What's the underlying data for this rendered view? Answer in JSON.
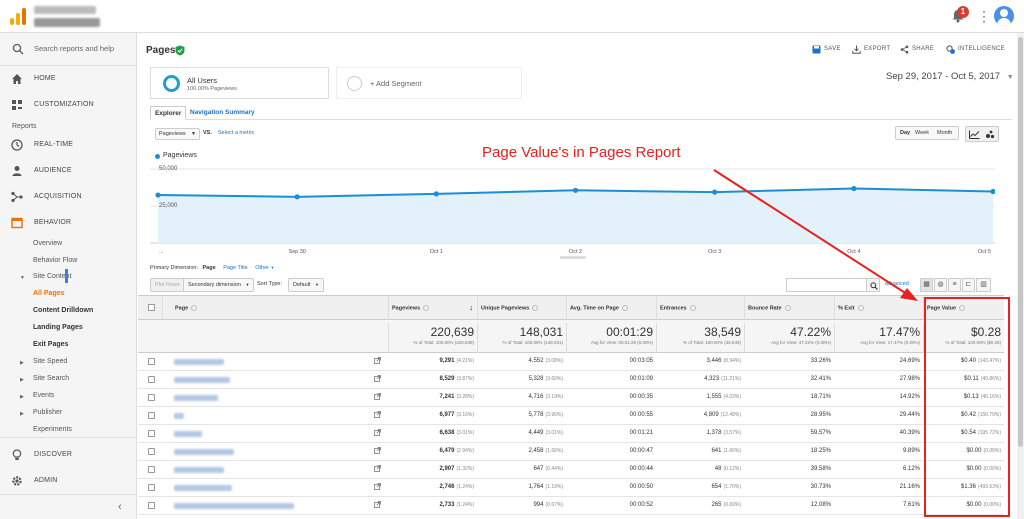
{
  "header": {
    "notification_count": "1"
  },
  "sidebar": {
    "search_placeholder": "Search reports and help",
    "home": "HOME",
    "customization": "CUSTOMIZATION",
    "reports_label": "Reports",
    "realtime": "REAL-TIME",
    "audience": "AUDIENCE",
    "acquisition": "ACQUISITION",
    "behavior": "BEHAVIOR",
    "behavior_items": {
      "overview": "Overview",
      "behavior_flow": "Behavior Flow",
      "site_content": "Site Content",
      "all_pages": "All Pages",
      "content_drilldown": "Content Drilldown",
      "landing_pages": "Landing Pages",
      "exit_pages": "Exit Pages",
      "site_speed": "Site Speed",
      "site_search": "Site Search",
      "events": "Events",
      "publisher": "Publisher",
      "experiments": "Experiments"
    },
    "discover": "DISCOVER",
    "admin": "ADMIN"
  },
  "toolbar": {
    "title": "Pages",
    "save": "SAVE",
    "export": "EXPORT",
    "share": "SHARE",
    "intelligence": "INTELLIGENCE"
  },
  "segments": {
    "name": "All Users",
    "sub": "100.00% Pageviews",
    "add": "+ Add Segment"
  },
  "date_range": "Sep 29, 2017 - Oct 5, 2017",
  "tabs": {
    "explorer": "Explorer",
    "nav_summary": "Navigation Summary"
  },
  "metric_controls": {
    "metric": "Pageviews",
    "vs": "VS.",
    "select_metric": "Select a metric",
    "day": "Day",
    "week": "Week",
    "month": "Month"
  },
  "annotation": "Page Value's in Pages Report",
  "chart_data": {
    "type": "area",
    "series": [
      {
        "name": "Pageviews",
        "values": [
          32400,
          31200,
          33200,
          35600,
          34400,
          36800,
          34800
        ]
      }
    ],
    "x": [
      "Sep 29",
      "Sep 30",
      "Oct 1",
      "Oct 2",
      "Oct 3",
      "Oct 4",
      "Oct 5"
    ],
    "x_tick_labels": [
      "...",
      "Sep 30",
      "Oct 1",
      "Oct 2",
      "Oct 3",
      "Oct 4",
      "Oct 5"
    ],
    "y_tick_labels": [
      "50,000",
      "25,000"
    ],
    "ylim": [
      0,
      50000
    ],
    "grid": true,
    "color": "#1a8fd6",
    "fill": "#e3f1fb"
  },
  "dimension": {
    "label": "Primary Dimension:",
    "page": "Page",
    "page_title": "Page Title",
    "other": "Other"
  },
  "table_toolbar": {
    "plot_rows": "Plot Rows",
    "secondary_dimension": "Secondary dimension",
    "sort_type": "Sort Type:",
    "sort_default": "Default",
    "advanced": "advanced"
  },
  "table": {
    "headers": {
      "page": "Page",
      "pageviews": "Pageviews",
      "unique_pageviews": "Unique Pageviews",
      "avg_time": "Avg. Time on Page",
      "entrances": "Entrances",
      "bounce_rate": "Bounce Rate",
      "exit": "% Exit",
      "page_value": "Page Value"
    },
    "totals": {
      "pageviews": "220,639",
      "pageviews_sub": "% of Total: 100.00% (220,639)",
      "unique": "148,031",
      "unique_sub": "% of Total: 100.00% (148,031)",
      "avg_time": "00:01:29",
      "avg_time_sub": "Avg for View: 00:01:29 (0.00%)",
      "entrances": "38,549",
      "entrances_sub": "% of Total: 100.00% (38,549)",
      "bounce": "47.22%",
      "bounce_sub": "Avg for View: 47.22% (0.00%)",
      "exit": "17.47%",
      "exit_sub": "Avg for View: 17.47% (0.00%)",
      "value": "$0.28",
      "value_sub": "% of Total: 100.00% ($0.28)"
    },
    "rows": [
      {
        "pv": "9,291",
        "pv_pct": "(4.21%)",
        "upv": "4,552",
        "upv_pct": "(3.08%)",
        "time": "00:03:05",
        "ent": "3,446",
        "ent_pct": "(8.94%)",
        "bounce": "33.26%",
        "exit": "24.69%",
        "val": "$0.40",
        "val_pct": "(143.47%)"
      },
      {
        "pv": "8,529",
        "pv_pct": "(3.87%)",
        "upv": "5,328",
        "upv_pct": "(3.60%)",
        "time": "00:01:09",
        "ent": "4,323",
        "ent_pct": "(11.21%)",
        "bounce": "32.41%",
        "exit": "27.98%",
        "val": "$0.11",
        "val_pct": "(40.86%)"
      },
      {
        "pv": "7,241",
        "pv_pct": "(3.28%)",
        "upv": "4,716",
        "upv_pct": "(3.19%)",
        "time": "00:00:35",
        "ent": "1,555",
        "ent_pct": "(4.03%)",
        "bounce": "18.71%",
        "exit": "14.92%",
        "val": "$0.13",
        "val_pct": "(46.16%)"
      },
      {
        "pv": "6,977",
        "pv_pct": "(3.16%)",
        "upv": "5,778",
        "upv_pct": "(3.90%)",
        "time": "00:00:55",
        "ent": "4,809",
        "ent_pct": "(12.48%)",
        "bounce": "28.95%",
        "exit": "29.44%",
        "val": "$0.42",
        "val_pct": "(150.70%)"
      },
      {
        "pv": "6,638",
        "pv_pct": "(3.01%)",
        "upv": "4,449",
        "upv_pct": "(3.01%)",
        "time": "00:01:21",
        "ent": "1,378",
        "ent_pct": "(3.57%)",
        "bounce": "59.57%",
        "exit": "40.39%",
        "val": "$0.54",
        "val_pct": "(195.72%)"
      },
      {
        "pv": "6,479",
        "pv_pct": "(2.94%)",
        "upv": "2,458",
        "upv_pct": "(1.66%)",
        "time": "00:00:47",
        "ent": "641",
        "ent_pct": "(1.66%)",
        "bounce": "18.25%",
        "exit": "9.89%",
        "val": "$0.00",
        "val_pct": "(0.00%)"
      },
      {
        "pv": "2,907",
        "pv_pct": "(1.32%)",
        "upv": "647",
        "upv_pct": "(0.44%)",
        "time": "00:00:44",
        "ent": "48",
        "ent_pct": "(0.12%)",
        "bounce": "39.58%",
        "exit": "6.12%",
        "val": "$0.00",
        "val_pct": "(0.00%)"
      },
      {
        "pv": "2,746",
        "pv_pct": "(1.24%)",
        "upv": "1,764",
        "upv_pct": "(1.19%)",
        "time": "00:00:50",
        "ent": "654",
        "ent_pct": "(1.70%)",
        "bounce": "30.73%",
        "exit": "21.16%",
        "val": "$1.36",
        "val_pct": "(493.63%)"
      },
      {
        "pv": "2,733",
        "pv_pct": "(1.24%)",
        "upv": "994",
        "upv_pct": "(0.67%)",
        "time": "00:00:52",
        "ent": "265",
        "ent_pct": "(0.69%)",
        "bounce": "12.08%",
        "exit": "7.61%",
        "val": "$0.00",
        "val_pct": "(0.00%)"
      }
    ]
  }
}
